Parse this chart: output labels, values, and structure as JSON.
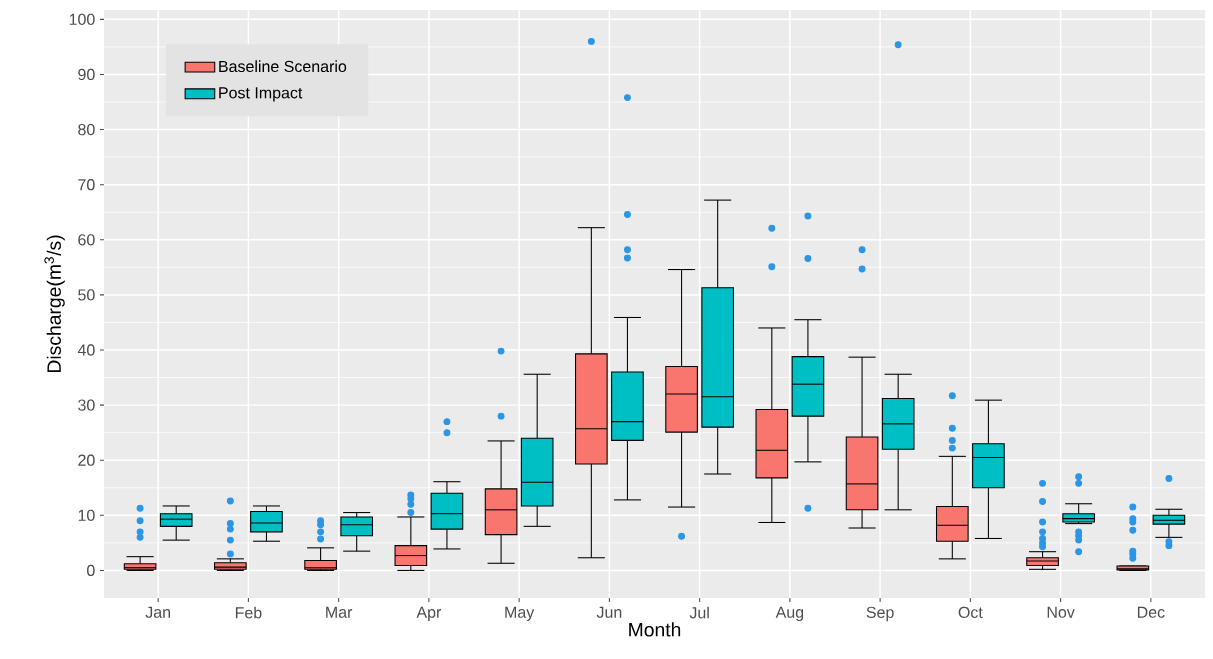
{
  "chart_data": {
    "type": "box",
    "xlabel": "Month",
    "ylabel": "Discharge(m$^{3}$/s)",
    "categories": [
      "Jan",
      "Feb",
      "Mar",
      "Apr",
      "May",
      "Jun",
      "Jul",
      "Aug",
      "Sep",
      "Oct",
      "Nov",
      "Dec"
    ],
    "ylim": [
      -5,
      101.7
    ],
    "yticks": [
      0,
      10,
      20,
      30,
      40,
      50,
      60,
      70,
      80,
      90,
      100
    ],
    "grid": true,
    "legend": "top left",
    "series": [
      {
        "name": "Baseline Scenario",
        "color": "#f8766d",
        "boxes": [
          {
            "low": 0,
            "q1": 0.2,
            "median": 0.5,
            "q3": 1.2,
            "high": 2.5,
            "outliers": [
              6,
              7,
              9,
              11.3
            ]
          },
          {
            "low": 0,
            "q1": 0.2,
            "median": 0.6,
            "q3": 1.4,
            "high": 2.1,
            "outliers": [
              3,
              5.5,
              7.5,
              8.5,
              12.6
            ]
          },
          {
            "low": 0,
            "q1": 0.2,
            "median": 0.5,
            "q3": 1.8,
            "high": 4.1,
            "outliers": [
              5.7,
              7,
              8.3,
              9
            ]
          },
          {
            "low": 0,
            "q1": 0.9,
            "median": 2.7,
            "q3": 4.5,
            "high": 9.7,
            "outliers": [
              10.5,
              12,
              13,
              13.7
            ]
          },
          {
            "low": 1.3,
            "q1": 6.5,
            "median": 11,
            "q3": 14.8,
            "high": 23.5,
            "outliers": [
              28,
              39.8
            ]
          },
          {
            "low": 2.3,
            "q1": 19.3,
            "median": 25.7,
            "q3": 39.3,
            "high": 62.2,
            "outliers": [
              96
            ]
          },
          {
            "low": 11.5,
            "q1": 25.1,
            "median": 32,
            "q3": 37,
            "high": 54.6,
            "outliers": [
              6.2
            ]
          },
          {
            "low": 8.7,
            "q1": 16.8,
            "median": 21.8,
            "q3": 29.2,
            "high": 44,
            "outliers": [
              55.1,
              62.1
            ]
          },
          {
            "low": 7.7,
            "q1": 11,
            "median": 15.7,
            "q3": 24.2,
            "high": 38.7,
            "outliers": [
              54.7,
              58.2
            ]
          },
          {
            "low": 2.1,
            "q1": 5.3,
            "median": 8.2,
            "q3": 11.6,
            "high": 20.7,
            "outliers": [
              22.2,
              23.6,
              25.8,
              31.7
            ]
          },
          {
            "low": 0.2,
            "q1": 0.9,
            "median": 1.7,
            "q3": 2.3,
            "high": 3.4,
            "outliers": [
              4.3,
              5,
              5.8,
              7,
              8.8,
              12.5,
              15.8
            ]
          },
          {
            "low": 0,
            "q1": 0.1,
            "median": 0.3,
            "q3": 0.8,
            "high": 0.8,
            "outliers": [
              2.2,
              3,
              3.5,
              7.3,
              8.8,
              9.4,
              11.5
            ]
          }
        ]
      },
      {
        "name": "Post Impact",
        "color": "#00bfc4",
        "boxes": [
          {
            "low": 5.5,
            "q1": 8,
            "median": 9.3,
            "q3": 10.3,
            "high": 11.7
          },
          {
            "low": 5.3,
            "q1": 7,
            "median": 8.6,
            "q3": 10.7,
            "high": 11.7
          },
          {
            "low": 3.5,
            "q1": 6.3,
            "median": 8.3,
            "q3": 9.7,
            "high": 10.5
          },
          {
            "low": 3.9,
            "q1": 7.5,
            "median": 10.3,
            "q3": 14,
            "high": 16.1,
            "outliers": [
              25,
              27
            ]
          },
          {
            "low": 8,
            "q1": 11.7,
            "median": 16,
            "q3": 24,
            "high": 35.6
          },
          {
            "low": 12.8,
            "q1": 23.6,
            "median": 27,
            "q3": 36,
            "high": 45.9,
            "outliers": [
              56.7,
              58.2,
              64.6,
              85.8
            ]
          },
          {
            "low": 17.5,
            "q1": 26,
            "median": 31.5,
            "q3": 51.3,
            "high": 67.2
          },
          {
            "low": 19.7,
            "q1": 28,
            "median": 33.8,
            "q3": 38.8,
            "high": 45.5,
            "outliers": [
              11.3,
              56.6,
              64.3
            ]
          },
          {
            "low": 11,
            "q1": 22,
            "median": 26.6,
            "q3": 31.2,
            "high": 35.6,
            "outliers": [
              95.4
            ]
          },
          {
            "low": 5.8,
            "q1": 15,
            "median": 20.5,
            "q3": 23,
            "high": 30.9
          },
          {
            "low": 8.5,
            "q1": 8.8,
            "median": 9.4,
            "q3": 10.3,
            "high": 12.1,
            "outliers": [
              3.4,
              5.5,
              6.3,
              7,
              15.8,
              17
            ]
          },
          {
            "low": 6,
            "q1": 8.4,
            "median": 9.1,
            "q3": 10,
            "high": 11.1,
            "outliers": [
              4.5,
              5.2,
              16.7
            ]
          }
        ]
      }
    ]
  }
}
